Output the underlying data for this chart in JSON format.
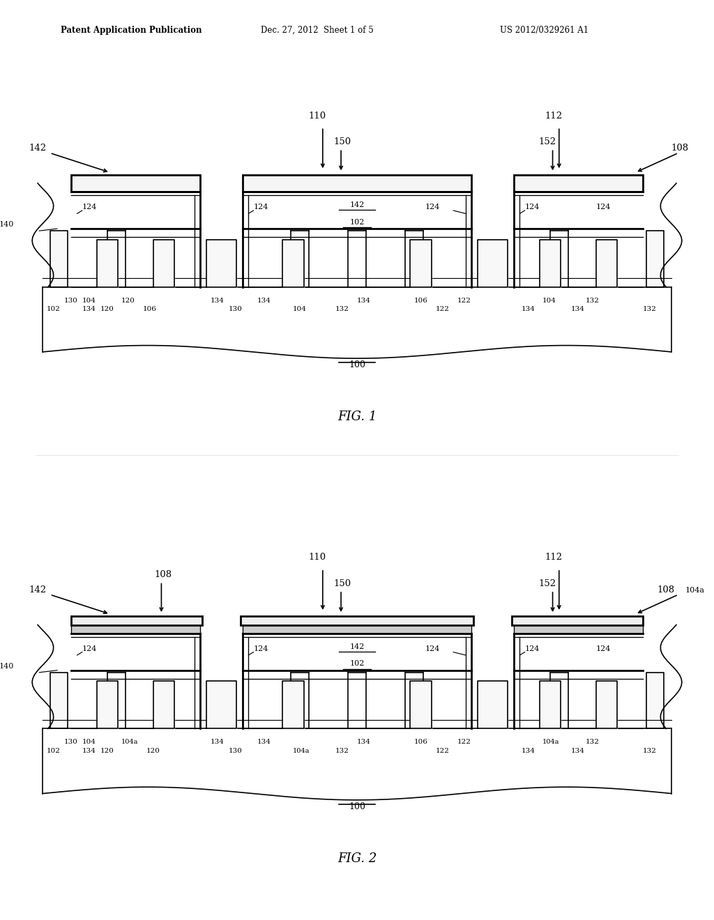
{
  "bg": "#ffffff",
  "lc": "#000000",
  "lw": 1.2,
  "tlw": 2.0,
  "header_left": "Patent Application Publication",
  "header_mid": "Dec. 27, 2012  Sheet 1 of 5",
  "header_right": "US 2012/0329261 A1",
  "fig1_caption": "FIG. 1",
  "fig2_caption": "FIG. 2"
}
